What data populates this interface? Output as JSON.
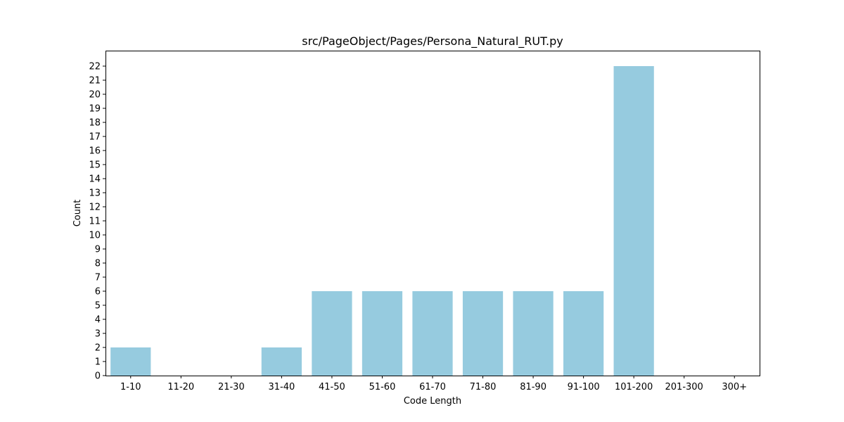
{
  "chart_data": {
    "type": "bar",
    "title": "src/PageObject/Pages/Persona_Natural_RUT.py",
    "xlabel": "Code Length",
    "ylabel": "Count",
    "categories": [
      "1-10",
      "11-20",
      "21-30",
      "31-40",
      "41-50",
      "51-60",
      "61-70",
      "71-80",
      "81-90",
      "91-100",
      "101-200",
      "201-300",
      "300+"
    ],
    "values": [
      2,
      0,
      0,
      2,
      6,
      6,
      6,
      6,
      6,
      6,
      22,
      0,
      0
    ],
    "ylim": [
      0,
      23.1
    ],
    "yticks": [
      0,
      1,
      2,
      3,
      4,
      5,
      6,
      7,
      8,
      9,
      10,
      11,
      12,
      13,
      14,
      15,
      16,
      17,
      18,
      19,
      20,
      21,
      22
    ],
    "bar_color": "#96cbdf",
    "grid": false,
    "legend": "none"
  }
}
